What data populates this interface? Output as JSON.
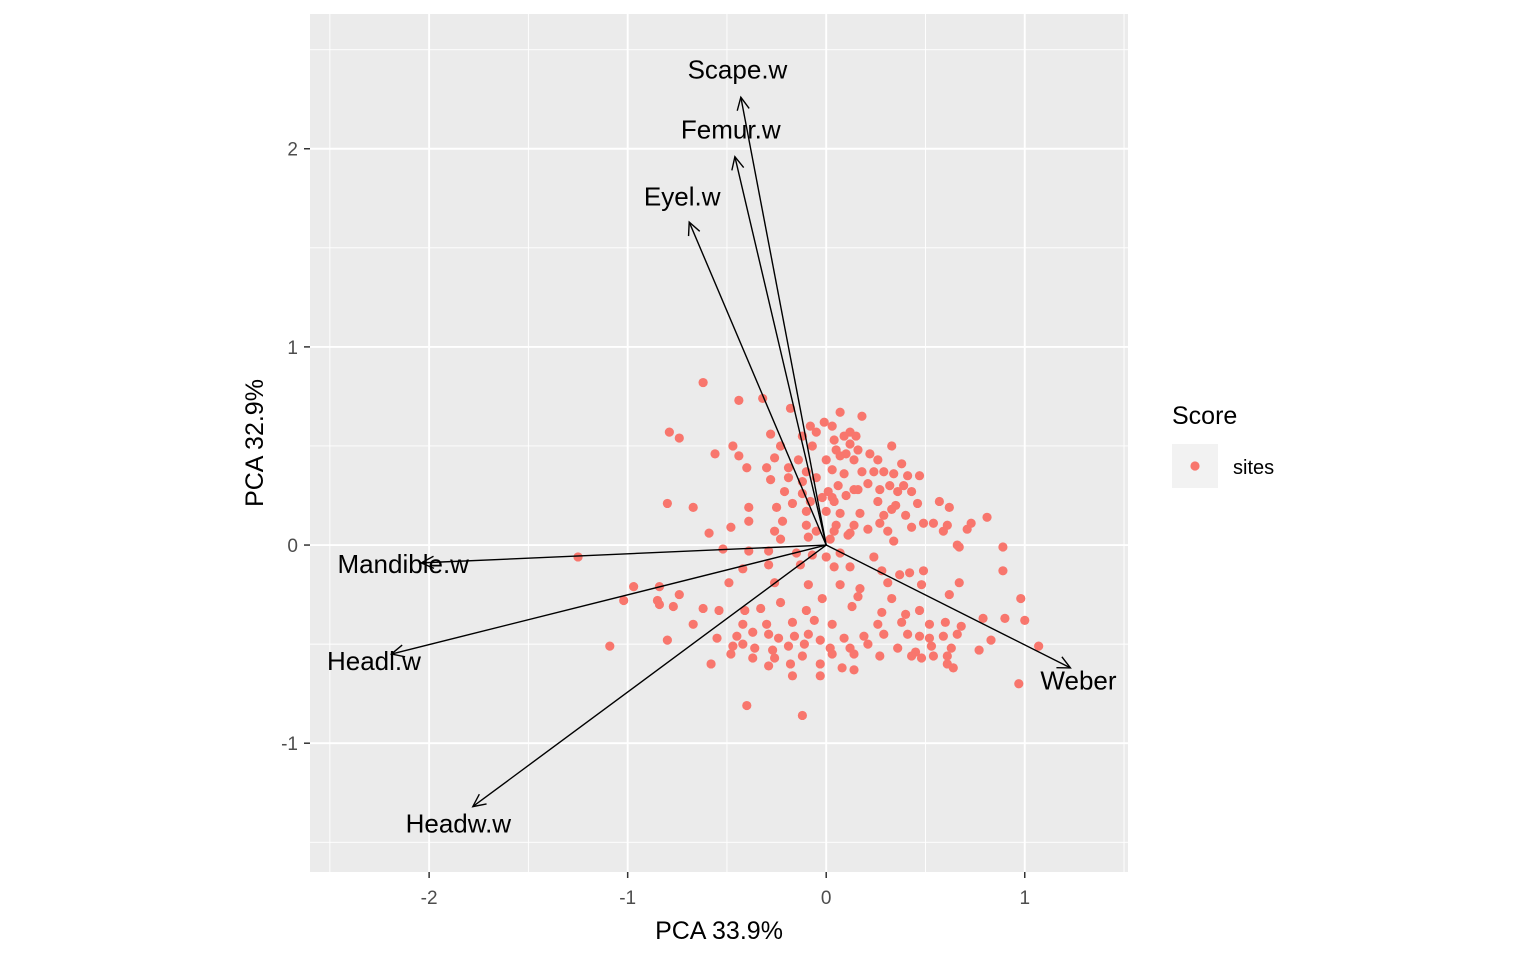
{
  "chart_data": {
    "type": "scatter",
    "subtype": "pca-biplot",
    "xlabel": "PCA 33.9%",
    "ylabel": "PCA 32.9%",
    "xlim": [
      -2.6,
      1.52
    ],
    "ylim": [
      -1.65,
      2.68
    ],
    "x_ticks": [
      -2,
      -1,
      0,
      1
    ],
    "y_ticks": [
      -1,
      0,
      1,
      2
    ],
    "grid": true,
    "colors": {
      "panel": "#ebebeb",
      "grid": "#ffffff",
      "point": "#f8766d",
      "arrow": "#000000",
      "legend_key": "#f2f2f2"
    },
    "legend": {
      "title": "Score",
      "placement": "right",
      "entries": [
        {
          "label": "sites",
          "color": "#f8766d"
        }
      ]
    },
    "series": [
      {
        "name": "sites",
        "points": [
          [
            -0.62,
            0.82
          ],
          [
            -0.44,
            0.73
          ],
          [
            -0.32,
            0.74
          ],
          [
            -0.18,
            0.69
          ],
          [
            -0.08,
            0.6
          ],
          [
            0.07,
            0.67
          ],
          [
            0.18,
            0.65
          ],
          [
            -0.01,
            0.62
          ],
          [
            0.03,
            0.6
          ],
          [
            -0.05,
            0.57
          ],
          [
            0.12,
            0.57
          ],
          [
            0.09,
            0.55
          ],
          [
            0.15,
            0.55
          ],
          [
            -0.28,
            0.56
          ],
          [
            -0.12,
            0.55
          ],
          [
            0.04,
            0.53
          ],
          [
            0.12,
            0.51
          ],
          [
            0.16,
            0.48
          ],
          [
            -0.79,
            0.57
          ],
          [
            -0.74,
            0.54
          ],
          [
            -0.47,
            0.5
          ],
          [
            -0.23,
            0.5
          ],
          [
            -0.07,
            0.5
          ],
          [
            0.05,
            0.48
          ],
          [
            0.1,
            0.46
          ],
          [
            0.22,
            0.46
          ],
          [
            0.33,
            0.5
          ],
          [
            -0.56,
            0.46
          ],
          [
            -0.44,
            0.45
          ],
          [
            -0.26,
            0.44
          ],
          [
            -0.14,
            0.43
          ],
          [
            0.0,
            0.43
          ],
          [
            0.07,
            0.45
          ],
          [
            0.14,
            0.43
          ],
          [
            0.26,
            0.43
          ],
          [
            0.38,
            0.41
          ],
          [
            -0.4,
            0.39
          ],
          [
            -0.3,
            0.39
          ],
          [
            -0.19,
            0.39
          ],
          [
            -0.1,
            0.37
          ],
          [
            0.03,
            0.38
          ],
          [
            0.09,
            0.36
          ],
          [
            0.18,
            0.37
          ],
          [
            0.24,
            0.37
          ],
          [
            0.29,
            0.37
          ],
          [
            0.34,
            0.36
          ],
          [
            0.41,
            0.35
          ],
          [
            0.47,
            0.35
          ],
          [
            -0.28,
            0.33
          ],
          [
            -0.19,
            0.34
          ],
          [
            -0.12,
            0.32
          ],
          [
            -0.05,
            0.34
          ],
          [
            0.06,
            0.3
          ],
          [
            0.14,
            0.28
          ],
          [
            0.21,
            0.31
          ],
          [
            0.32,
            0.3
          ],
          [
            0.39,
            0.3
          ],
          [
            -0.21,
            0.27
          ],
          [
            -0.12,
            0.26
          ],
          [
            0.01,
            0.27
          ],
          [
            0.03,
            0.24
          ],
          [
            0.1,
            0.25
          ],
          [
            0.16,
            0.28
          ],
          [
            0.27,
            0.28
          ],
          [
            0.36,
            0.27
          ],
          [
            0.43,
            0.27
          ],
          [
            -0.17,
            0.21
          ],
          [
            -0.08,
            0.22
          ],
          [
            -0.02,
            0.24
          ],
          [
            0.04,
            0.22
          ],
          [
            0.26,
            0.22
          ],
          [
            0.35,
            0.2
          ],
          [
            0.46,
            0.21
          ],
          [
            0.57,
            0.22
          ],
          [
            0.62,
            0.19
          ],
          [
            0.81,
            0.14
          ],
          [
            -0.8,
            0.21
          ],
          [
            -0.67,
            0.19
          ],
          [
            -0.39,
            0.19
          ],
          [
            -0.25,
            0.19
          ],
          [
            -0.1,
            0.17
          ],
          [
            0.0,
            0.17
          ],
          [
            0.07,
            0.16
          ],
          [
            0.17,
            0.16
          ],
          [
            0.29,
            0.15
          ],
          [
            0.33,
            0.18
          ],
          [
            0.4,
            0.15
          ],
          [
            -0.39,
            0.12
          ],
          [
            -0.22,
            0.12
          ],
          [
            -0.1,
            0.1
          ],
          [
            0.05,
            0.1
          ],
          [
            0.14,
            0.1
          ],
          [
            0.27,
            0.11
          ],
          [
            0.49,
            0.11
          ],
          [
            0.54,
            0.11
          ],
          [
            0.61,
            0.1
          ],
          [
            0.73,
            0.11
          ],
          [
            -0.59,
            0.06
          ],
          [
            -0.48,
            0.09
          ],
          [
            -0.26,
            0.07
          ],
          [
            -0.05,
            0.07
          ],
          [
            0.04,
            0.07
          ],
          [
            0.12,
            0.06
          ],
          [
            0.21,
            0.08
          ],
          [
            0.31,
            0.07
          ],
          [
            0.43,
            0.09
          ],
          [
            0.59,
            0.07
          ],
          [
            0.71,
            0.08
          ],
          [
            -0.23,
            0.03
          ],
          [
            -0.09,
            0.04
          ],
          [
            0.02,
            0.03
          ],
          [
            0.11,
            0.05
          ],
          [
            0.34,
            0.02
          ],
          [
            0.66,
            0.0
          ],
          [
            0.67,
            -0.01
          ],
          [
            -1.25,
            -0.06
          ],
          [
            -0.52,
            -0.02
          ],
          [
            -0.39,
            -0.03
          ],
          [
            -0.29,
            -0.03
          ],
          [
            -0.15,
            -0.04
          ],
          [
            -0.07,
            -0.05
          ],
          [
            0.0,
            -0.06
          ],
          [
            0.07,
            -0.04
          ],
          [
            0.24,
            -0.06
          ],
          [
            0.89,
            -0.01
          ],
          [
            -0.42,
            -0.12
          ],
          [
            -0.29,
            -0.1
          ],
          [
            -0.13,
            -0.1
          ],
          [
            0.04,
            -0.11
          ],
          [
            0.12,
            -0.11
          ],
          [
            0.28,
            -0.13
          ],
          [
            0.37,
            -0.15
          ],
          [
            0.42,
            -0.14
          ],
          [
            0.49,
            -0.13
          ],
          [
            0.89,
            -0.13
          ],
          [
            -0.97,
            -0.21
          ],
          [
            -0.84,
            -0.21
          ],
          [
            -0.49,
            -0.19
          ],
          [
            -0.26,
            -0.19
          ],
          [
            -0.09,
            -0.2
          ],
          [
            0.07,
            -0.2
          ],
          [
            0.17,
            -0.22
          ],
          [
            0.31,
            -0.19
          ],
          [
            0.48,
            -0.2
          ],
          [
            0.67,
            -0.19
          ],
          [
            -1.02,
            -0.28
          ],
          [
            -0.85,
            -0.28
          ],
          [
            -0.74,
            -0.25
          ],
          [
            -0.23,
            -0.29
          ],
          [
            -0.02,
            -0.27
          ],
          [
            0.16,
            -0.26
          ],
          [
            0.33,
            -0.27
          ],
          [
            0.62,
            -0.25
          ],
          [
            0.98,
            -0.27
          ],
          [
            -0.84,
            -0.3
          ],
          [
            -0.77,
            -0.31
          ],
          [
            -0.62,
            -0.32
          ],
          [
            -0.54,
            -0.33
          ],
          [
            -0.41,
            -0.33
          ],
          [
            -0.33,
            -0.32
          ],
          [
            -0.1,
            -0.33
          ],
          [
            0.13,
            -0.31
          ],
          [
            0.28,
            -0.34
          ],
          [
            0.4,
            -0.35
          ],
          [
            0.47,
            -0.33
          ],
          [
            0.79,
            -0.37
          ],
          [
            0.9,
            -0.37
          ],
          [
            1.0,
            -0.38
          ],
          [
            -0.67,
            -0.4
          ],
          [
            -0.42,
            -0.4
          ],
          [
            -0.3,
            -0.4
          ],
          [
            -0.17,
            -0.39
          ],
          [
            -0.06,
            -0.38
          ],
          [
            0.03,
            -0.4
          ],
          [
            0.26,
            -0.4
          ],
          [
            0.38,
            -0.39
          ],
          [
            0.52,
            -0.4
          ],
          [
            0.6,
            -0.39
          ],
          [
            0.68,
            -0.41
          ],
          [
            -0.8,
            -0.48
          ],
          [
            -0.55,
            -0.47
          ],
          [
            -0.45,
            -0.46
          ],
          [
            -0.37,
            -0.44
          ],
          [
            -0.29,
            -0.45
          ],
          [
            -0.24,
            -0.47
          ],
          [
            -0.16,
            -0.46
          ],
          [
            -0.09,
            -0.45
          ],
          [
            -0.03,
            -0.48
          ],
          [
            0.09,
            -0.47
          ],
          [
            0.19,
            -0.46
          ],
          [
            0.29,
            -0.45
          ],
          [
            0.41,
            -0.45
          ],
          [
            0.47,
            -0.46
          ],
          [
            0.52,
            -0.47
          ],
          [
            0.59,
            -0.46
          ],
          [
            0.66,
            -0.45
          ],
          [
            0.83,
            -0.48
          ],
          [
            -1.09,
            -0.51
          ],
          [
            -0.47,
            -0.51
          ],
          [
            -0.42,
            -0.5
          ],
          [
            -0.36,
            -0.52
          ],
          [
            -0.27,
            -0.53
          ],
          [
            -0.19,
            -0.51
          ],
          [
            -0.11,
            -0.5
          ],
          [
            0.02,
            -0.52
          ],
          [
            0.12,
            -0.52
          ],
          [
            0.21,
            -0.5
          ],
          [
            0.36,
            -0.52
          ],
          [
            0.45,
            -0.54
          ],
          [
            0.53,
            -0.51
          ],
          [
            0.63,
            -0.52
          ],
          [
            0.77,
            -0.53
          ],
          [
            -0.48,
            -0.55
          ],
          [
            -0.37,
            -0.57
          ],
          [
            -0.26,
            -0.57
          ],
          [
            -0.12,
            -0.56
          ],
          [
            0.03,
            -0.55
          ],
          [
            0.14,
            -0.55
          ],
          [
            0.27,
            -0.56
          ],
          [
            0.43,
            -0.56
          ],
          [
            0.48,
            -0.57
          ],
          [
            0.54,
            -0.56
          ],
          [
            0.61,
            -0.56
          ],
          [
            -0.58,
            -0.6
          ],
          [
            -0.29,
            -0.61
          ],
          [
            -0.18,
            -0.6
          ],
          [
            -0.03,
            -0.6
          ],
          [
            0.08,
            -0.62
          ],
          [
            0.14,
            -0.63
          ],
          [
            0.61,
            -0.6
          ],
          [
            0.64,
            -0.62
          ],
          [
            -0.17,
            -0.66
          ],
          [
            -0.03,
            -0.66
          ],
          [
            0.97,
            -0.7
          ],
          [
            1.07,
            -0.51
          ],
          [
            -0.4,
            -0.81
          ],
          [
            -0.12,
            -0.86
          ]
        ]
      }
    ],
    "loadings": [
      {
        "label": "Scape.w",
        "x": -0.43,
        "y": 2.26
      },
      {
        "label": "Femur.w",
        "x": -0.46,
        "y": 1.96
      },
      {
        "label": "Eyel.w",
        "x": -0.69,
        "y": 1.63
      },
      {
        "label": "Mandible.w",
        "x": -2.04,
        "y": -0.09
      },
      {
        "label": "Headl.w",
        "x": -2.19,
        "y": -0.55
      },
      {
        "label": "Headw.w",
        "x": -1.78,
        "y": -1.32
      },
      {
        "label": "Weber",
        "x": 1.23,
        "y": -0.62
      }
    ]
  }
}
